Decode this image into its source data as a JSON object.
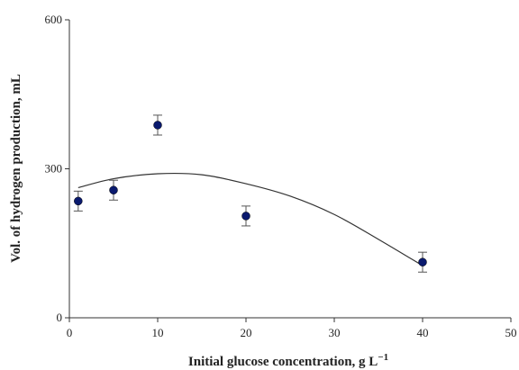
{
  "chart_data": {
    "type": "scatter",
    "xlabel": "Initial glucose concentration, g L",
    "xlabel_superscript": "−1",
    "ylabel": "Vol. of hydrogen production, mL",
    "xlim": [
      0,
      50
    ],
    "ylim": [
      0,
      600
    ],
    "x_ticks": [
      0,
      10,
      20,
      30,
      40,
      50
    ],
    "y_ticks": [
      0,
      300,
      600
    ],
    "x_tick_labels": [
      "0",
      "10",
      "20",
      "30",
      "40",
      "50"
    ],
    "y_tick_labels": [
      "0",
      "300",
      "600"
    ],
    "grid": false,
    "points": [
      {
        "x": 1,
        "y": 235,
        "err": 20
      },
      {
        "x": 5,
        "y": 257,
        "err": 20
      },
      {
        "x": 10,
        "y": 388,
        "err": 20
      },
      {
        "x": 20,
        "y": 205,
        "err": 20
      },
      {
        "x": 40,
        "y": 112,
        "err": 20
      }
    ],
    "fit_line": {
      "x": [
        1,
        5,
        10,
        15,
        20,
        25,
        30,
        35,
        40
      ],
      "y": [
        262,
        280,
        290,
        288,
        270,
        245,
        208,
        158,
        105
      ]
    },
    "colors": {
      "point": "#0a1a6e",
      "line": "#333333",
      "axis": "#333333"
    }
  }
}
